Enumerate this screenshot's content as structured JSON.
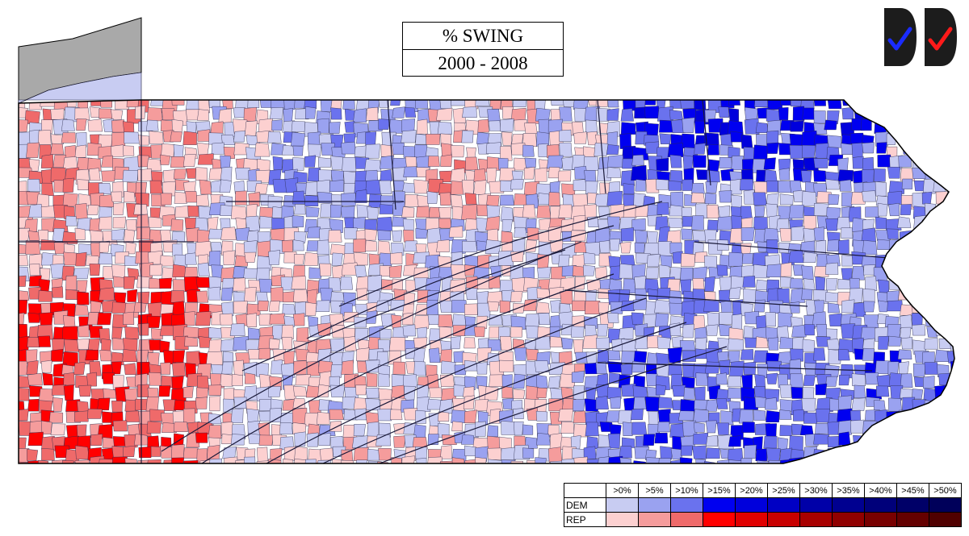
{
  "title": {
    "line1": "% SWING",
    "line2": "2000 - 2008"
  },
  "logos": [
    {
      "icon": "blue-checkmark-logo-icon",
      "check_color": "#1a2cff"
    },
    {
      "icon": "red-checkmark-logo-icon",
      "check_color": "#ff1a1a"
    }
  ],
  "legend": {
    "bins": [
      ">0%",
      ">5%",
      ">10%",
      ">15%",
      ">20%",
      ">25%",
      ">30%",
      ">35%",
      ">40%",
      ">45%",
      ">50%"
    ],
    "rows": [
      {
        "party": "DEM",
        "colors": [
          "#c8ccf2",
          "#9aa2f0",
          "#6a72ee",
          "#0000f0",
          "#0000dc",
          "#0000c4",
          "#0000a8",
          "#000090",
          "#00007a",
          "#000068",
          "#00005a"
        ]
      },
      {
        "party": "REP",
        "colors": [
          "#fcd0d0",
          "#f59c9c",
          "#ef6a6a",
          "#ff0000",
          "#e00000",
          "#c80000",
          "#a80000",
          "#900000",
          "#780000",
          "#640000",
          "#500000"
        ]
      }
    ]
  },
  "map": {
    "region": "Pennsylvania municipalities",
    "lake_color": "#a9a9a9",
    "border_color": "#1a1a3a"
  }
}
